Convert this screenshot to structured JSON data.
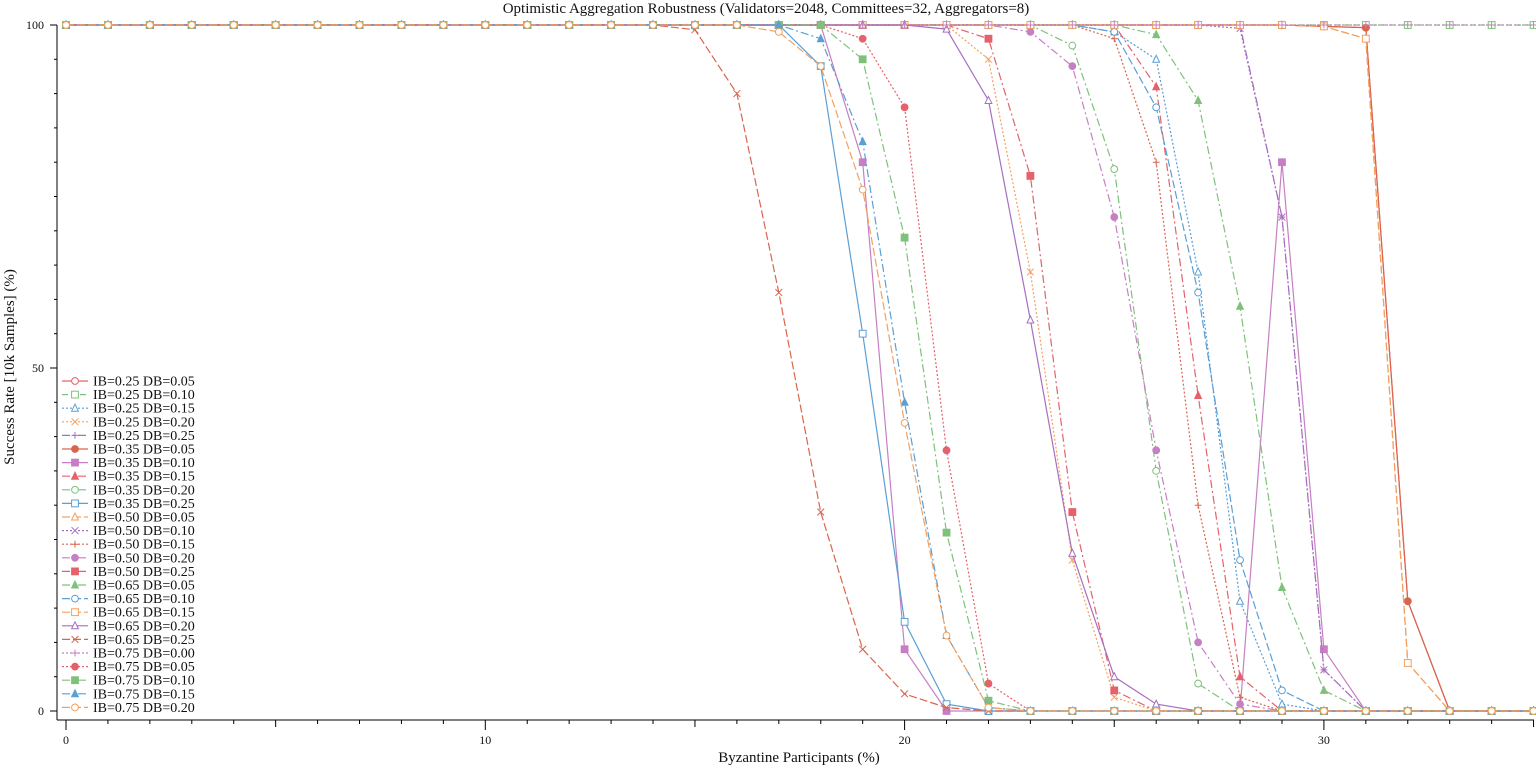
{
  "chart_data": {
    "type": "line",
    "title": "Optimistic Aggregation Robustness (Validators=2048, Committees=32, Aggregators=8)",
    "xlabel": "Byzantine Participants (%)",
    "ylabel": "Success Rate [10k Samples] (%)",
    "xlim": [
      0,
      35
    ],
    "ylim": [
      0,
      100
    ],
    "x_ticks": [
      0,
      10,
      20,
      30
    ],
    "y_ticks": [
      0,
      50,
      100
    ],
    "grid": false,
    "legend_position": "lower-left",
    "x": [
      0,
      1,
      2,
      3,
      4,
      5,
      6,
      7,
      8,
      9,
      10,
      11,
      12,
      13,
      14,
      15,
      16,
      17,
      18,
      19,
      20,
      21,
      22,
      23,
      24,
      25,
      26,
      27,
      28,
      29,
      30,
      31,
      32,
      33,
      34,
      35
    ],
    "series": [
      {
        "name": "IB=0.25 DB=0.05",
        "color": "#e5616b",
        "dash": "solid",
        "marker": "circle-open",
        "values": [
          100,
          100,
          100,
          100,
          100,
          100,
          100,
          100,
          100,
          100,
          100,
          100,
          100,
          100,
          100,
          100,
          100,
          100,
          100,
          100,
          100,
          100,
          100,
          100,
          100,
          100,
          100,
          100,
          100,
          100,
          99.8,
          99.6,
          16,
          0,
          0,
          0
        ]
      },
      {
        "name": "IB=0.25 DB=0.10",
        "color": "#7fc17b",
        "dash": "6,3",
        "marker": "square-open",
        "values": [
          100,
          100,
          100,
          100,
          100,
          100,
          100,
          100,
          100,
          100,
          100,
          100,
          100,
          100,
          100,
          100,
          100,
          100,
          100,
          100,
          100,
          100,
          100,
          100,
          100,
          100,
          100,
          100,
          100,
          100,
          100,
          100,
          100,
          100,
          100,
          100
        ]
      },
      {
        "name": "IB=0.25 DB=0.15",
        "color": "#5a9fd6",
        "dash": "2,2",
        "marker": "triangle-open",
        "values": [
          100,
          100,
          100,
          100,
          100,
          100,
          100,
          100,
          100,
          100,
          100,
          100,
          100,
          100,
          100,
          100,
          100,
          100,
          100,
          100,
          100,
          100,
          100,
          100,
          100,
          99,
          95,
          64,
          16,
          1,
          0,
          0,
          0,
          0,
          0,
          0
        ]
      },
      {
        "name": "IB=0.25 DB=0.20",
        "color": "#f5a05c",
        "dash": "2,2",
        "marker": "x",
        "values": [
          100,
          100,
          100,
          100,
          100,
          100,
          100,
          100,
          100,
          100,
          100,
          100,
          100,
          100,
          100,
          100,
          100,
          100,
          100,
          100,
          100,
          100,
          95,
          64,
          22,
          2,
          0,
          0,
          0,
          0,
          0,
          0,
          0,
          0,
          0,
          0
        ]
      },
      {
        "name": "IB=0.25 DB=0.25",
        "color": "#a66fbf",
        "dash": "8,3,2,3",
        "marker": "plus",
        "values": [
          100,
          100,
          100,
          100,
          100,
          100,
          100,
          100,
          100,
          100,
          100,
          100,
          100,
          100,
          100,
          100,
          100,
          100,
          100,
          100,
          100,
          100,
          100,
          100,
          100,
          100,
          100,
          100,
          100,
          72,
          6,
          0,
          0,
          0,
          0,
          0
        ]
      },
      {
        "name": "IB=0.35 DB=0.05",
        "color": "#d9654e",
        "dash": "solid",
        "marker": "circle",
        "values": [
          100,
          100,
          100,
          100,
          100,
          100,
          100,
          100,
          100,
          100,
          100,
          100,
          100,
          100,
          100,
          100,
          100,
          100,
          100,
          100,
          100,
          100,
          100,
          100,
          100,
          100,
          100,
          100,
          100,
          100,
          99.8,
          99.6,
          16,
          0,
          0,
          0
        ]
      },
      {
        "name": "IB=0.35 DB=0.10",
        "color": "#c77fc3",
        "dash": "solid",
        "marker": "square",
        "values": [
          100,
          100,
          100,
          100,
          100,
          100,
          100,
          100,
          100,
          100,
          100,
          100,
          100,
          100,
          100,
          100,
          100,
          100,
          100,
          80,
          9,
          0,
          0,
          0,
          0,
          0,
          0,
          0,
          0,
          80,
          9,
          0,
          0,
          0,
          0,
          0
        ]
      },
      {
        "name": "IB=0.35 DB=0.15",
        "color": "#e5616b",
        "dash": "8,3,2,3",
        "marker": "triangle",
        "values": [
          100,
          100,
          100,
          100,
          100,
          100,
          100,
          100,
          100,
          100,
          100,
          100,
          100,
          100,
          100,
          100,
          100,
          100,
          100,
          100,
          100,
          100,
          100,
          100,
          100,
          100,
          91,
          46,
          5,
          0,
          0,
          0,
          0,
          0,
          0,
          0
        ]
      },
      {
        "name": "IB=0.35 DB=0.20",
        "color": "#7fc17b",
        "dash": "8,3,2,3",
        "marker": "circle-open",
        "values": [
          100,
          100,
          100,
          100,
          100,
          100,
          100,
          100,
          100,
          100,
          100,
          100,
          100,
          100,
          100,
          100,
          100,
          100,
          100,
          100,
          100,
          100,
          100,
          100,
          97,
          79,
          35,
          4,
          0,
          0,
          0,
          0,
          0,
          0,
          0,
          0
        ]
      },
      {
        "name": "IB=0.35 DB=0.25",
        "color": "#5a9fd6",
        "dash": "solid",
        "marker": "square-open",
        "values": [
          100,
          100,
          100,
          100,
          100,
          100,
          100,
          100,
          100,
          100,
          100,
          100,
          100,
          100,
          100,
          100,
          100,
          100,
          94,
          55,
          13,
          1,
          0,
          0,
          0,
          0,
          0,
          0,
          0,
          0,
          0,
          0,
          0,
          0,
          0,
          0
        ]
      },
      {
        "name": "IB=0.50 DB=0.05",
        "color": "#f5a05c",
        "dash": "8,3",
        "marker": "triangle-open",
        "values": [
          100,
          100,
          100,
          100,
          100,
          100,
          100,
          100,
          100,
          100,
          100,
          100,
          100,
          100,
          100,
          100,
          100,
          100,
          100,
          100,
          100,
          100,
          100,
          100,
          100,
          100,
          100,
          100,
          100,
          100,
          99.8,
          98,
          7,
          0,
          0,
          0
        ]
      },
      {
        "name": "IB=0.50 DB=0.10",
        "color": "#a66fbf",
        "dash": "2,2",
        "marker": "x",
        "values": [
          100,
          100,
          100,
          100,
          100,
          100,
          100,
          100,
          100,
          100,
          100,
          100,
          100,
          100,
          100,
          100,
          100,
          100,
          100,
          100,
          100,
          100,
          100,
          100,
          100,
          100,
          100,
          100,
          99.5,
          72,
          6,
          0,
          0,
          0,
          0,
          0
        ]
      },
      {
        "name": "IB=0.50 DB=0.15",
        "color": "#d9654e",
        "dash": "2,2",
        "marker": "plus",
        "values": [
          100,
          100,
          100,
          100,
          100,
          100,
          100,
          100,
          100,
          100,
          100,
          100,
          100,
          100,
          100,
          100,
          100,
          100,
          100,
          100,
          100,
          100,
          100,
          100,
          100,
          98,
          80,
          30,
          2,
          0,
          0,
          0,
          0,
          0,
          0,
          0
        ]
      },
      {
        "name": "IB=0.50 DB=0.20",
        "color": "#c77fc3",
        "dash": "8,3,2,3",
        "marker": "circle",
        "values": [
          100,
          100,
          100,
          100,
          100,
          100,
          100,
          100,
          100,
          100,
          100,
          100,
          100,
          100,
          100,
          100,
          100,
          100,
          100,
          100,
          100,
          100,
          100,
          99,
          94,
          72,
          38,
          10,
          1,
          0,
          0,
          0,
          0,
          0,
          0,
          0
        ]
      },
      {
        "name": "IB=0.50 DB=0.25",
        "color": "#e5616b",
        "dash": "8,3,2,3",
        "marker": "square",
        "values": [
          100,
          100,
          100,
          100,
          100,
          100,
          100,
          100,
          100,
          100,
          100,
          100,
          100,
          100,
          100,
          100,
          100,
          100,
          100,
          100,
          100,
          100,
          98,
          78,
          29,
          3,
          0,
          0,
          0,
          0,
          0,
          0,
          0,
          0,
          0,
          0
        ]
      },
      {
        "name": "IB=0.65 DB=0.05",
        "color": "#7fc17b",
        "dash": "8,3,2,3",
        "marker": "triangle",
        "values": [
          100,
          100,
          100,
          100,
          100,
          100,
          100,
          100,
          100,
          100,
          100,
          100,
          100,
          100,
          100,
          100,
          100,
          100,
          100,
          100,
          100,
          100,
          100,
          100,
          100,
          100,
          98.6,
          89,
          59,
          18,
          3,
          0,
          0,
          0,
          0,
          0
        ]
      },
      {
        "name": "IB=0.65 DB=0.10",
        "color": "#5a9fd6",
        "dash": "8,3",
        "marker": "circle-open",
        "values": [
          100,
          100,
          100,
          100,
          100,
          100,
          100,
          100,
          100,
          100,
          100,
          100,
          100,
          100,
          100,
          100,
          100,
          100,
          100,
          100,
          100,
          100,
          100,
          100,
          100,
          99,
          88,
          61,
          22,
          3,
          0,
          0,
          0,
          0,
          0,
          0
        ]
      },
      {
        "name": "IB=0.65 DB=0.15",
        "color": "#f5a05c",
        "dash": "8,3",
        "marker": "square-open",
        "values": [
          100,
          100,
          100,
          100,
          100,
          100,
          100,
          100,
          100,
          100,
          100,
          100,
          100,
          100,
          100,
          100,
          100,
          100,
          100,
          100,
          100,
          100,
          100,
          100,
          100,
          100,
          100,
          100,
          100,
          100,
          99.8,
          98,
          7,
          0,
          0,
          0
        ]
      },
      {
        "name": "IB=0.65 DB=0.20",
        "color": "#a66fbf",
        "dash": "solid",
        "marker": "triangle-open",
        "values": [
          100,
          100,
          100,
          100,
          100,
          100,
          100,
          100,
          100,
          100,
          100,
          100,
          100,
          100,
          100,
          100,
          100,
          100,
          100,
          100,
          100,
          99.4,
          89,
          57,
          23,
          5,
          1,
          0,
          0,
          0,
          0,
          0,
          0,
          0,
          0,
          0
        ]
      },
      {
        "name": "IB=0.65 DB=0.25",
        "color": "#d9654e",
        "dash": "8,3",
        "marker": "x",
        "values": [
          100,
          100,
          100,
          100,
          100,
          100,
          100,
          100,
          100,
          100,
          100,
          100,
          100,
          100,
          100,
          99.3,
          90,
          61,
          29,
          9,
          2.5,
          0.5,
          0,
          0,
          0,
          0,
          0,
          0,
          0,
          0,
          0,
          0,
          0,
          0,
          0,
          0
        ]
      },
      {
        "name": "IB=0.75 DB=0.00",
        "color": "#c77fc3",
        "dash": "2,2",
        "marker": "plus",
        "values": [
          100,
          100,
          100,
          100,
          100,
          100,
          100,
          100,
          100,
          100,
          100,
          100,
          100,
          100,
          100,
          100,
          100,
          100,
          100,
          100,
          100,
          100,
          100,
          100,
          100,
          100,
          100,
          100,
          100,
          100,
          100,
          100,
          100,
          100,
          100,
          100
        ]
      },
      {
        "name": "IB=0.75 DB=0.05",
        "color": "#e5616b",
        "dash": "2,2",
        "marker": "circle",
        "values": [
          100,
          100,
          100,
          100,
          100,
          100,
          100,
          100,
          100,
          100,
          100,
          100,
          100,
          100,
          100,
          100,
          100,
          100,
          100,
          98,
          88,
          38,
          4,
          0,
          0,
          0,
          0,
          0,
          0,
          0,
          0,
          0,
          0,
          0,
          0,
          0
        ]
      },
      {
        "name": "IB=0.75 DB=0.10",
        "color": "#7fc17b",
        "dash": "8,3,2,3",
        "marker": "square",
        "values": [
          100,
          100,
          100,
          100,
          100,
          100,
          100,
          100,
          100,
          100,
          100,
          100,
          100,
          100,
          100,
          100,
          100,
          100,
          100,
          95,
          69,
          26,
          1.5,
          0,
          0,
          0,
          0,
          0,
          0,
          0,
          0,
          0,
          0,
          0,
          0,
          0
        ]
      },
      {
        "name": "IB=0.75 DB=0.15",
        "color": "#5a9fd6",
        "dash": "8,3,2,3",
        "marker": "triangle",
        "values": [
          100,
          100,
          100,
          100,
          100,
          100,
          100,
          100,
          100,
          100,
          100,
          100,
          100,
          100,
          100,
          100,
          100,
          100,
          98,
          83,
          45,
          11,
          0.5,
          0,
          0,
          0,
          0,
          0,
          0,
          0,
          0,
          0,
          0,
          0,
          0,
          0
        ]
      },
      {
        "name": "IB=0.75 DB=0.20",
        "color": "#f5a05c",
        "dash": "8,3",
        "marker": "circle-open",
        "values": [
          100,
          100,
          100,
          100,
          100,
          100,
          100,
          100,
          100,
          100,
          100,
          100,
          100,
          100,
          100,
          100,
          100,
          99,
          94,
          76,
          42,
          11,
          0.5,
          0,
          0,
          0,
          0,
          0,
          0,
          0,
          0,
          0,
          0,
          0,
          0,
          0
        ]
      }
    ]
  }
}
